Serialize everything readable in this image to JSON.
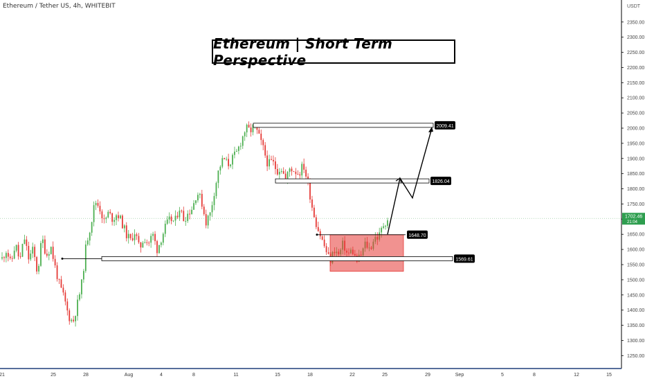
{
  "header": {
    "symbol": "Ethereum / Tether US, 4h, WHITEBIT"
  },
  "chart_data": {
    "type": "candlestick",
    "title": "Ethereum | Short Term Perspective",
    "currency_label": "USDT",
    "ylim": [
      1200,
      2400
    ],
    "y_ticks": [
      1250,
      1300,
      1350,
      1400,
      1450,
      1500,
      1550,
      1600,
      1650,
      1700,
      1750,
      1800,
      1850,
      1900,
      1950,
      2000,
      2050,
      2100,
      2150,
      2200,
      2250,
      2300,
      2350
    ],
    "x_ticks": [
      "21",
      "25",
      "28",
      "Aug",
      "4",
      "8",
      "11",
      "15",
      "18",
      "22",
      "25",
      "29",
      "Sep",
      "5",
      "8",
      "12",
      "15"
    ],
    "current_price": "1702.46",
    "countdown": "21:04",
    "levels": [
      {
        "label": "2009.41",
        "value": 2009.41
      },
      {
        "label": "1826.04",
        "value": 1826.04
      },
      {
        "label": "1648.70",
        "value": 1648.7
      },
      {
        "label": "1569.61",
        "value": 1569.61
      }
    ],
    "zone": {
      "top": 1648.7,
      "bottom": 1528
    },
    "projection": [
      1650,
      1835,
      1770,
      2000
    ],
    "price_path": [
      1570,
      1600,
      1550,
      1620,
      1560,
      1640,
      1570,
      1600,
      1520,
      1640,
      1580,
      1610,
      1540,
      1480,
      1440,
      1380,
      1360,
      1420,
      1490,
      1620,
      1680,
      1760,
      1740,
      1690,
      1720,
      1700,
      1720,
      1690,
      1650,
      1630,
      1660,
      1600,
      1640,
      1620,
      1650,
      1600,
      1640,
      1680,
      1700,
      1690,
      1740,
      1700,
      1720,
      1740,
      1790,
      1760,
      1690,
      1720,
      1800,
      1870,
      1900,
      1880,
      1900,
      1920,
      1960,
      2000,
      1990,
      2010,
      1970,
      1930,
      1880,
      1890,
      1860,
      1870,
      1830,
      1870,
      1860,
      1850,
      1880,
      1820,
      1740,
      1680,
      1640,
      1600,
      1560,
      1600,
      1580,
      1620,
      1580,
      1600,
      1560,
      1580,
      1620,
      1600,
      1640,
      1640,
      1680,
      1700
    ]
  }
}
